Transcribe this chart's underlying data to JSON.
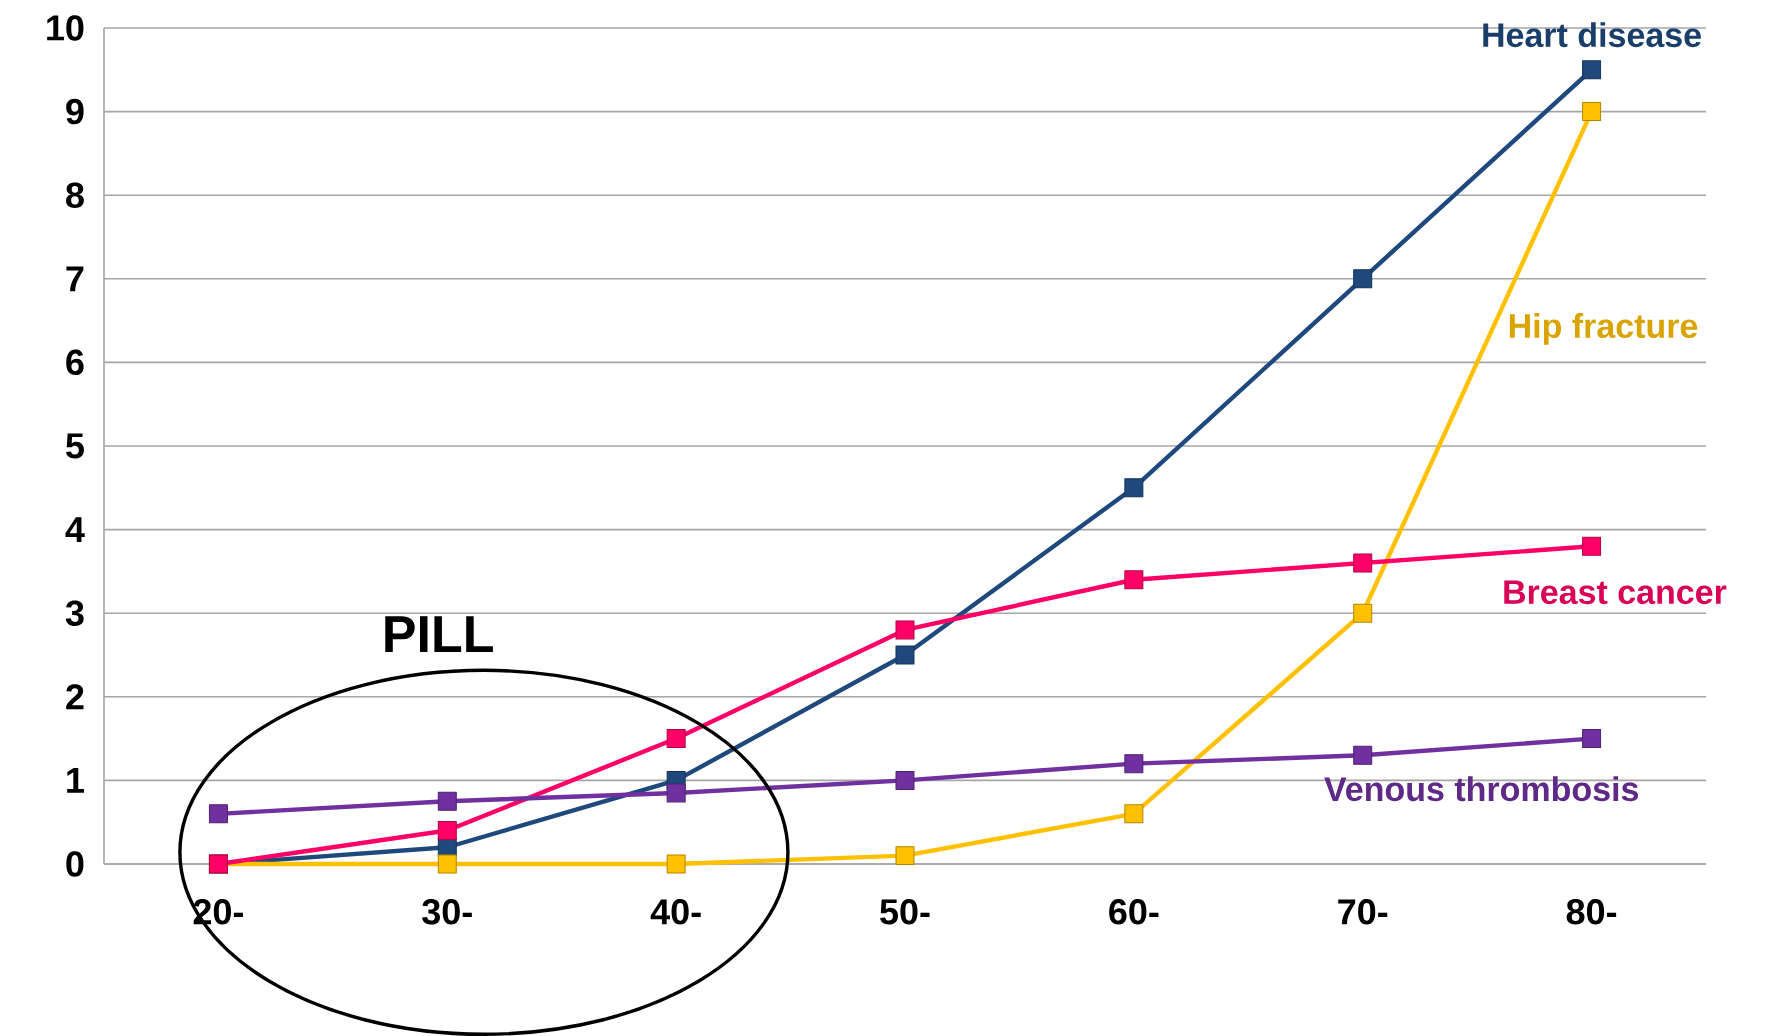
{
  "chart_data": {
    "type": "line",
    "categories": [
      "20-",
      "30-",
      "40-",
      "50-",
      "60-",
      "70-",
      "80-"
    ],
    "series": [
      {
        "name": "Heart disease",
        "color": "#1f497d",
        "values": [
          0,
          0.2,
          1,
          2.5,
          4.5,
          7,
          9.5
        ]
      },
      {
        "name": "Hip fracture",
        "color": "#ffc000",
        "values": [
          0,
          0,
          0,
          0.1,
          0.6,
          3,
          9
        ]
      },
      {
        "name": "Breast cancer",
        "color": "#ff0066",
        "values": [
          0,
          0.4,
          1.5,
          2.8,
          3.4,
          3.6,
          3.8
        ]
      },
      {
        "name": "Venous thrombosis",
        "color": "#7030a0",
        "values": [
          0.6,
          0.75,
          0.85,
          1,
          1.2,
          1.3,
          1.5
        ]
      }
    ],
    "ylim": [
      0,
      10
    ],
    "yticks": [
      0,
      1,
      2,
      3,
      4,
      5,
      6,
      7,
      8,
      9,
      10
    ],
    "grid": "y",
    "marker": "square",
    "line_style": "solid",
    "annotations": [
      "PILL"
    ]
  }
}
